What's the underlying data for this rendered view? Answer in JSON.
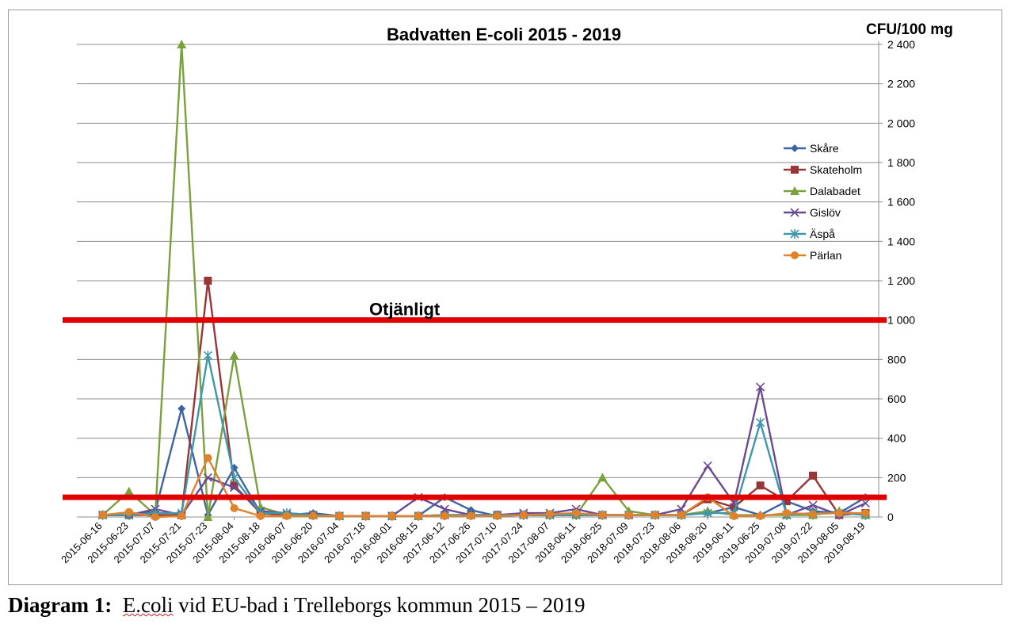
{
  "chart_data": {
    "type": "line",
    "title": "Badvatten E-coli 2015 - 2019",
    "ylabel": "CFU/100 mg",
    "xlabel": "",
    "ylim": [
      0,
      2400
    ],
    "yticks": [
      0,
      200,
      400,
      600,
      800,
      1000,
      1200,
      1400,
      1600,
      1800,
      2000,
      2200,
      2400
    ],
    "ytick_labels": [
      "0",
      "200",
      "400",
      "600",
      "800",
      "1 000",
      "1 200",
      "1 400",
      "1 600",
      "1 800",
      "2 000",
      "2 200",
      "2 400"
    ],
    "y_axis_side": "right",
    "grid": true,
    "legend_position": "right",
    "x": [
      "2015-06-16",
      "2015-06-23",
      "2015-07-07",
      "2015-07-21",
      "2015-07-23",
      "2015-08-04",
      "2015-08-18",
      "2016-06-07",
      "2016-06-20",
      "2016-07-04",
      "2016-07-18",
      "2016-08-01",
      "2016-08-15",
      "2017-06-12",
      "2017-06-26",
      "2017-07-10",
      "2017-07-24",
      "2017-08-07",
      "2018-06-11",
      "2018-06-25",
      "2018-07-09",
      "2018-07-23",
      "2018-08-06",
      "2018-08-20",
      "2019-06-11",
      "2019-06-25",
      "2019-07-08",
      "2019-07-22",
      "2019-08-05",
      "2019-08-19"
    ],
    "series": [
      {
        "name": "Skåre",
        "color": "#3f64a6",
        "marker": "diamond",
        "values": [
          10,
          10,
          30,
          550,
          10,
          250,
          20,
          10,
          20,
          5,
          5,
          5,
          5,
          100,
          35,
          5,
          10,
          10,
          10,
          10,
          10,
          10,
          10,
          20,
          50,
          10,
          80,
          30,
          20,
          100
        ]
      },
      {
        "name": "Skateholm",
        "color": "#9b3434",
        "marker": "square",
        "values": [
          10,
          10,
          10,
          10,
          1200,
          160,
          20,
          10,
          10,
          5,
          5,
          5,
          5,
          10,
          10,
          10,
          10,
          10,
          10,
          10,
          10,
          10,
          10,
          90,
          50,
          160,
          80,
          210,
          10,
          20
        ]
      },
      {
        "name": "Dalabadet",
        "color": "#7ba13c",
        "marker": "triangle",
        "values": [
          10,
          130,
          10,
          2400,
          0,
          820,
          50,
          10,
          10,
          5,
          5,
          5,
          5,
          10,
          10,
          10,
          10,
          10,
          10,
          200,
          30,
          10,
          10,
          30,
          10,
          10,
          10,
          10,
          30,
          10
        ]
      },
      {
        "name": "Gislöv",
        "color": "#6b4a94",
        "marker": "x",
        "values": [
          10,
          10,
          40,
          10,
          200,
          150,
          30,
          20,
          10,
          5,
          5,
          5,
          100,
          40,
          10,
          10,
          20,
          20,
          40,
          10,
          10,
          10,
          40,
          260,
          70,
          660,
          10,
          60,
          10,
          70
        ]
      },
      {
        "name": "Äspå",
        "color": "#3d97ad",
        "marker": "asterisk",
        "values": [
          10,
          10,
          20,
          20,
          820,
          200,
          20,
          20,
          10,
          5,
          5,
          5,
          5,
          10,
          10,
          10,
          10,
          10,
          10,
          10,
          10,
          10,
          10,
          20,
          20,
          480,
          10,
          20,
          20,
          10
        ]
      },
      {
        "name": "Pärlan",
        "color": "#e0812c",
        "marker": "circle",
        "values": [
          10,
          25,
          0,
          5,
          300,
          45,
          5,
          5,
          5,
          5,
          5,
          5,
          5,
          5,
          5,
          5,
          10,
          15,
          20,
          10,
          10,
          10,
          10,
          100,
          5,
          5,
          20,
          15,
          20,
          20
        ]
      }
    ],
    "reference_lines": [
      {
        "value": 1000,
        "color": "#e00000",
        "label": "Otjänligt"
      },
      {
        "value": 100,
        "color": "#e00000",
        "label": ""
      }
    ]
  },
  "caption": {
    "lead": "Diagram 1:",
    "underlined": "E.coli",
    "rest": " vid EU-bad i Trelleborgs kommun 2015 – 2019"
  }
}
